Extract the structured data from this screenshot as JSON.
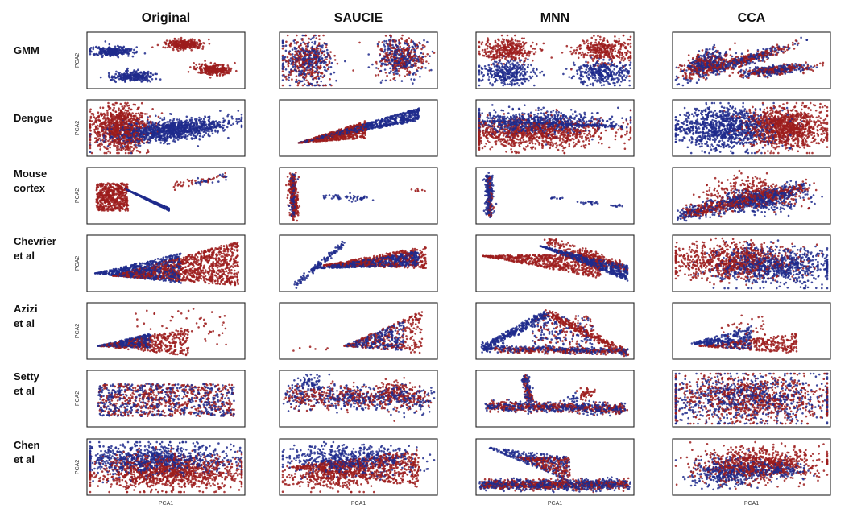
{
  "chart_data": {
    "type": "scatter",
    "columns": [
      "Original",
      "SAUCIE",
      "MNN",
      "CCA"
    ],
    "rows": [
      {
        "label_lines": [
          "GMM"
        ]
      },
      {
        "label_lines": [
          "Dengue"
        ]
      },
      {
        "label_lines": [
          "Mouse",
          "cortex"
        ]
      },
      {
        "label_lines": [
          "Chevrier",
          "et al"
        ]
      },
      {
        "label_lines": [
          "Azizi",
          "et al"
        ]
      },
      {
        "label_lines": [
          "Setty",
          "et al"
        ]
      },
      {
        "label_lines": [
          "Chen",
          "et al"
        ]
      }
    ],
    "xlabel": "PCA1",
    "ylabel": "PCA2",
    "series_colors": {
      "batch1": "#9c1c1c",
      "batch2": "#1f2a8c"
    },
    "grid": false,
    "legend": "none"
  }
}
